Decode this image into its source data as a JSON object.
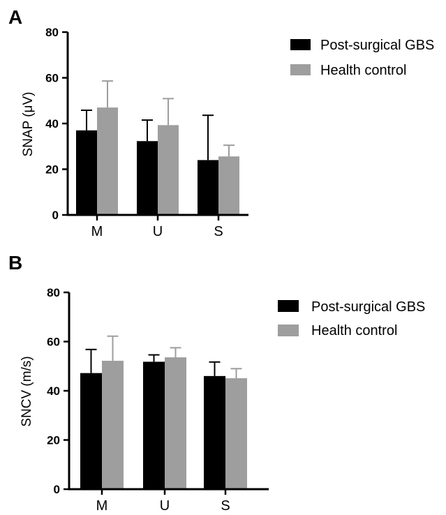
{
  "chart_data": [
    {
      "type": "bar",
      "panel_label": "A",
      "ylabel": "SNAP (μV)",
      "categories": [
        "M",
        "U",
        "S"
      ],
      "ylim": [
        0,
        80
      ],
      "yticks": [
        "0",
        "20",
        "40",
        "60",
        "80"
      ],
      "grid": false,
      "legend_position": "top-right",
      "series": [
        {
          "name": "Post-surgical GBS",
          "color": "#000000",
          "values": [
            37.0,
            32.3,
            24.0
          ],
          "errors": [
            8.8,
            9.2,
            19.6
          ]
        },
        {
          "name": "Health control",
          "color": "#9e9e9e",
          "values": [
            47.0,
            39.3,
            25.6
          ],
          "errors": [
            11.6,
            11.6,
            4.9
          ]
        }
      ]
    },
    {
      "type": "bar",
      "panel_label": "B",
      "ylabel": "SNCV (m/s)",
      "categories": [
        "M",
        "U",
        "S"
      ],
      "ylim": [
        0,
        80
      ],
      "yticks": [
        "0",
        "20",
        "40",
        "60",
        "80"
      ],
      "grid": false,
      "legend_position": "top-right",
      "series": [
        {
          "name": "Post-surgical GBS",
          "color": "#000000",
          "values": [
            47.2,
            51.8,
            46.0
          ],
          "errors": [
            9.6,
            2.8,
            5.7
          ]
        },
        {
          "name": "Health control",
          "color": "#9e9e9e",
          "values": [
            52.2,
            53.6,
            45.1
          ],
          "errors": [
            10.0,
            3.9,
            3.9
          ]
        }
      ]
    }
  ]
}
